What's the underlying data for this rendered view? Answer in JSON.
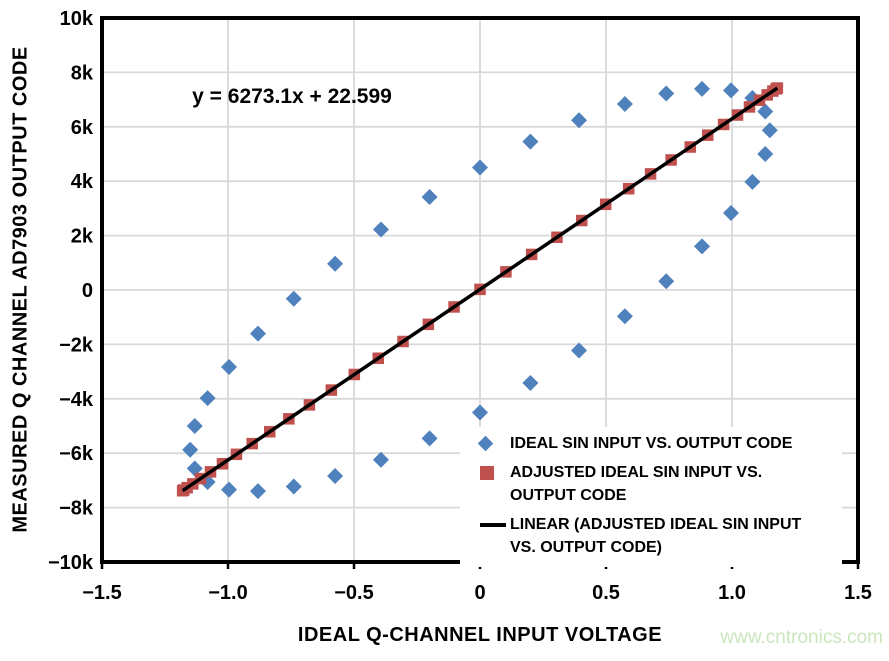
{
  "watermark": {
    "text": "www.cntronics.com",
    "color": "#CBE6BD"
  },
  "chart_data": {
    "type": "scatter",
    "title": "",
    "annotation": "y = 6273.1x + 22.599",
    "xlabel": "IDEAL Q-CHANNEL INPUT VOLTAGE",
    "ylabel": "MEASURED Q CHANNEL AD7903 OUTPUT CODE",
    "xlim": [
      -1.5,
      1.5
    ],
    "ylim": [
      -10000,
      10000
    ],
    "grid": true,
    "gridline_color": "#D9D9D9",
    "axis_color": "#000000",
    "background_color": "#FFFFFF",
    "legend_position": "inside-lower-right",
    "x_ticks": {
      "values": [
        -1.5,
        -1.0,
        -0.5,
        0,
        0.5,
        1.0,
        1.5
      ],
      "labels": [
        "−1.5",
        "−1.0",
        "−0.5",
        "0",
        "0.5",
        "1.0",
        "1.5"
      ]
    },
    "y_ticks": {
      "values": [
        10000,
        8000,
        6000,
        4000,
        2000,
        0,
        -2000,
        -4000,
        -6000,
        -8000,
        -10000
      ],
      "labels": [
        "10k",
        "8k",
        "6k",
        "4k",
        "2k",
        "0",
        "−2k",
        "−4k",
        "−6k",
        "−8k",
        "−10k"
      ]
    },
    "series": [
      {
        "name": "IDEAL SIN INPUT VS. OUTPUT CODE",
        "marker": "diamond",
        "color": "#4F81BD",
        "points": [
          [
            0,
            4505
          ],
          [
            0.2,
            5456
          ],
          [
            0.393,
            6241
          ],
          [
            0.575,
            6837
          ],
          [
            0.739,
            7224
          ],
          [
            0.881,
            7393
          ],
          [
            0.996,
            7337
          ],
          [
            1.081,
            7058
          ],
          [
            1.132,
            6564
          ],
          [
            1.15,
            5871
          ],
          [
            1.132,
            4999
          ],
          [
            1.081,
            3976
          ],
          [
            0.996,
            2832
          ],
          [
            0.881,
            1602
          ],
          [
            0.739,
            323
          ],
          [
            0.575,
            -966
          ],
          [
            0.393,
            -2225
          ],
          [
            0.2,
            -3417
          ],
          [
            0,
            -4505
          ],
          [
            -0.2,
            -5456
          ],
          [
            -0.393,
            -6241
          ],
          [
            -0.575,
            -6837
          ],
          [
            -0.739,
            -7224
          ],
          [
            -0.881,
            -7393
          ],
          [
            -0.996,
            -7337
          ],
          [
            -1.081,
            -7058
          ],
          [
            -1.132,
            -6564
          ],
          [
            -1.15,
            -5871
          ],
          [
            -1.132,
            -4999
          ],
          [
            -1.081,
            -3976
          ],
          [
            -0.996,
            -2832
          ],
          [
            -0.881,
            -1602
          ],
          [
            -0.739,
            -323
          ],
          [
            -0.575,
            966
          ],
          [
            -0.393,
            2225
          ],
          [
            -0.2,
            3417
          ]
        ]
      },
      {
        "name": "ADJUSTED IDEAL SIN INPUT VS. OUTPUT CODE",
        "marker": "square",
        "color": "#C0504D",
        "points": [
          [
            -1.18,
            -7380
          ],
          [
            -1.1755,
            -7352
          ],
          [
            -1.1621,
            -7268
          ],
          [
            -1.1398,
            -7128
          ],
          [
            -1.1088,
            -6933
          ],
          [
            -1.0694,
            -6686
          ],
          [
            -1.0219,
            -6388
          ],
          [
            -0.9666,
            -6041
          ],
          [
            -0.9039,
            -5648
          ],
          [
            -0.8344,
            -5212
          ],
          [
            -0.7585,
            -4736
          ],
          [
            -0.6769,
            -4224
          ],
          [
            -0.59,
            -3679
          ],
          [
            -0.4987,
            -3106
          ],
          [
            -0.4036,
            -2509
          ],
          [
            -0.3054,
            -1893
          ],
          [
            -0.2049,
            -1263
          ],
          [
            -0.1029,
            -623
          ],
          [
            0,
            23
          ],
          [
            0.1029,
            668
          ],
          [
            0.2049,
            1308
          ],
          [
            0.3054,
            1938
          ],
          [
            0.4036,
            2554
          ],
          [
            0.4987,
            3151
          ],
          [
            0.59,
            3724
          ],
          [
            0.6769,
            4269
          ],
          [
            0.7585,
            4781
          ],
          [
            0.8344,
            5257
          ],
          [
            0.9039,
            5693
          ],
          [
            0.9666,
            6086
          ],
          [
            1.0219,
            6433
          ],
          [
            1.0694,
            6731
          ],
          [
            1.1088,
            6978
          ],
          [
            1.1398,
            7173
          ],
          [
            1.1621,
            7313
          ],
          [
            1.1755,
            7397
          ],
          [
            1.18,
            7425
          ]
        ]
      },
      {
        "name": "LINEAR (ADJUSTED IDEAL SIN INPUT VS. OUTPUT CODE)",
        "marker": "line",
        "color": "#000000",
        "points": [
          [
            -1.18,
            -7380
          ],
          [
            1.18,
            7425
          ]
        ]
      }
    ],
    "legend": [
      {
        "marker": "diamond",
        "color": "#4F81BD",
        "lines": [
          "IDEAL SIN INPUT VS. OUTPUT CODE"
        ]
      },
      {
        "marker": "square",
        "color": "#C0504D",
        "lines": [
          "ADJUSTED IDEAL SIN INPUT VS.",
          "OUTPUT CODE"
        ]
      },
      {
        "marker": "line",
        "color": "#000000",
        "lines": [
          "LINEAR (ADJUSTED IDEAL SIN INPUT",
          "VS. OUTPUT CODE)"
        ]
      }
    ]
  }
}
